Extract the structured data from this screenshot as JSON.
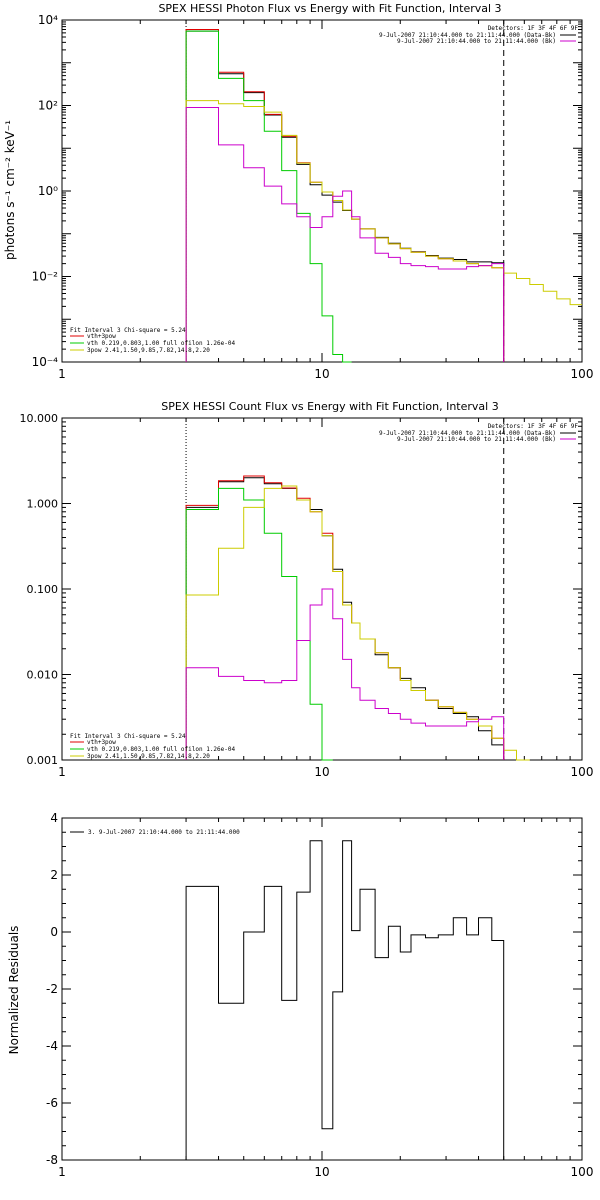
{
  "chart_data": [
    {
      "type": "line",
      "title": "SPEX HESSI Photon Flux vs Energy with Fit Function, Interval 3",
      "xlabel": "",
      "ylabel": "photons s⁻¹ cm⁻² keV⁻¹",
      "xscale": "log",
      "yscale": "log",
      "xlim": [
        1,
        100
      ],
      "ylim": [
        0.0001,
        10000
      ],
      "x_ticks": [
        1,
        10,
        100
      ],
      "x_tick_labels": [
        "1",
        "10",
        "100"
      ],
      "y_ticks": [
        0.0001,
        0.01,
        1,
        100,
        10000
      ],
      "y_tick_labels": [
        "10⁻⁴",
        "10⁻²",
        "10⁰",
        "10²",
        "10⁴"
      ],
      "detectors_label": "Detectors: 1F 3F 4F 6F 9F",
      "right_legend": [
        {
          "label": "9-Jul-2007 21:10:44.000 to 21:11:44.000 (Data-Bk)",
          "color": "#000000"
        },
        {
          "label": "9-Jul-2007 21:10:44.000 to 21:11:44.000 (Bk)",
          "color": "#cc00cc"
        }
      ],
      "fit_label": "Fit Interval 3   Chi-square = 5.24",
      "left_legend": [
        {
          "label": "vth+3pow",
          "color": "#e00000"
        },
        {
          "label": "vth 0.219,0.803,1.00  full ofilon 1.26e-04",
          "color": "#00cc00"
        },
        {
          "label": "3pow 2.41,1.50,9.85,7.82,14.8,2.20",
          "color": "#cccc00"
        }
      ],
      "bin_edges": [
        3.0,
        4.0,
        5.0,
        6.0,
        7.0,
        8.0,
        9.0,
        10.0,
        11.0,
        12.0,
        13.0,
        14.0,
        16.0,
        18.0,
        20.0,
        22.0,
        25.0,
        28.0,
        32.0,
        36.0,
        40.0,
        45.0,
        50.0,
        56.0,
        63.0,
        71.0,
        80.0,
        90.0,
        100.0
      ],
      "series": [
        {
          "name": "Data-Bk",
          "color": "#000000",
          "values": [
            5500,
            550,
            200,
            60,
            18,
            4.2,
            1.4,
            0.8,
            0.55,
            0.35,
            0.22,
            0.13,
            0.082,
            0.06,
            0.046,
            0.038,
            0.031,
            0.027,
            0.025,
            0.022,
            0.022,
            0.021,
            null,
            null,
            null,
            null,
            null,
            null
          ]
        },
        {
          "name": "vth+3pow",
          "color": "#e00000",
          "values": [
            6000,
            600,
            210,
            62,
            19,
            4.6,
            1.6,
            0.95,
            0.6,
            0.36,
            0.22,
            0.13,
            0.08,
            0.058,
            0.045,
            0.037,
            0.03,
            0.026,
            0.023,
            0.02,
            0.018,
            0.016,
            null,
            null,
            null,
            null,
            null,
            null
          ]
        },
        {
          "name": "vth",
          "color": "#00cc00",
          "values": [
            5500,
            430,
            130,
            25,
            3.0,
            0.3,
            0.02,
            0.0012,
            0.00015,
            0.0001,
            null,
            null,
            null,
            null,
            null,
            null,
            null,
            null,
            null,
            null,
            null,
            null,
            null,
            null,
            null,
            null,
            null,
            null
          ]
        },
        {
          "name": "3pow",
          "color": "#cccc00",
          "values": [
            130,
            110,
            95,
            70,
            20,
            4.5,
            1.6,
            0.95,
            0.6,
            0.36,
            0.22,
            0.13,
            0.08,
            0.058,
            0.045,
            0.037,
            0.03,
            0.026,
            0.023,
            0.02,
            0.018,
            0.016,
            0.012,
            0.009,
            0.0065,
            0.0045,
            0.003,
            0.0022
          ]
        },
        {
          "name": "Bk",
          "color": "#cc00cc",
          "values": [
            90,
            12,
            3.5,
            1.3,
            0.5,
            0.25,
            0.14,
            0.25,
            0.75,
            1.0,
            0.25,
            0.08,
            0.035,
            0.028,
            0.02,
            0.018,
            0.017,
            0.015,
            0.015,
            0.017,
            0.018,
            0.02,
            null,
            null,
            null,
            null,
            null,
            null
          ]
        }
      ]
    },
    {
      "type": "line",
      "title": "SPEX HESSI Count Flux vs Energy with Fit Function, Interval 3",
      "xlabel": "",
      "ylabel": "",
      "xscale": "log",
      "yscale": "log",
      "xlim": [
        1,
        100
      ],
      "ylim": [
        0.001,
        10
      ],
      "x_ticks": [
        1,
        10,
        100
      ],
      "x_tick_labels": [
        "1",
        "10",
        "100"
      ],
      "y_ticks": [
        0.001,
        0.01,
        0.1,
        1,
        10
      ],
      "y_tick_labels": [
        "0.001",
        "0.010",
        "0.100",
        "1.000",
        "10.000"
      ],
      "detectors_label": "Detectors: 1F 3F 4F 6F 9F",
      "right_legend": [
        {
          "label": "9-Jul-2007 21:10:44.000 to 21:11:44.000 (Data-Bk)",
          "color": "#000000"
        },
        {
          "label": "9-Jul-2007 21:10:44.000 to 21:11:44.000 (Bk)",
          "color": "#cc00cc"
        }
      ],
      "fit_label": "Fit Interval 3   Chi-square = 5.24",
      "left_legend": [
        {
          "label": "vth+3pow",
          "color": "#e00000"
        },
        {
          "label": "vth 0.219,0.803,1.00  full ofilon 1.26e-04",
          "color": "#00cc00"
        },
        {
          "label": "3pow 2.41,1.50,9.85,7.82,14.8,2.20",
          "color": "#cccc00"
        }
      ],
      "bin_edges": [
        3.0,
        4.0,
        5.0,
        6.0,
        7.0,
        8.0,
        9.0,
        10.0,
        11.0,
        12.0,
        13.0,
        14.0,
        16.0,
        18.0,
        20.0,
        22.0,
        25.0,
        28.0,
        32.0,
        36.0,
        40.0,
        45.0,
        50.0,
        56.0,
        63.0,
        71.0,
        80.0,
        90.0,
        100.0
      ],
      "series": [
        {
          "name": "Data-Bk",
          "color": "#000000",
          "values": [
            0.9,
            1.8,
            2.0,
            1.7,
            1.5,
            1.1,
            0.85,
            0.42,
            0.17,
            0.07,
            0.04,
            0.026,
            0.017,
            0.012,
            0.009,
            0.007,
            0.005,
            0.004,
            0.0035,
            0.0032,
            0.0022,
            0.0015,
            null,
            null,
            null,
            null,
            null,
            null
          ]
        },
        {
          "name": "vth+3pow",
          "color": "#e00000",
          "values": [
            0.95,
            1.85,
            2.1,
            1.75,
            1.52,
            1.15,
            0.8,
            0.45,
            0.16,
            0.065,
            0.04,
            0.026,
            0.018,
            0.012,
            0.0085,
            0.0065,
            0.005,
            0.0042,
            0.0036,
            0.003,
            0.0025,
            0.0018,
            null,
            null,
            null,
            null,
            null,
            null
          ]
        },
        {
          "name": "vth",
          "color": "#00cc00",
          "values": [
            0.85,
            1.5,
            1.1,
            0.45,
            0.14,
            0.025,
            0.0045,
            0.001,
            null,
            null,
            null,
            null,
            null,
            null,
            null,
            null,
            null,
            null,
            null,
            null,
            null,
            null,
            null,
            null,
            null,
            null,
            null,
            null
          ]
        },
        {
          "name": "3pow",
          "color": "#cccc00",
          "values": [
            0.085,
            0.3,
            0.9,
            1.5,
            1.6,
            1.1,
            0.8,
            0.42,
            0.16,
            0.065,
            0.04,
            0.026,
            0.018,
            0.012,
            0.0085,
            0.0065,
            0.005,
            0.0042,
            0.0036,
            0.003,
            0.0025,
            0.0018,
            0.0013,
            0.001,
            null,
            null,
            null,
            null
          ]
        },
        {
          "name": "Bk",
          "color": "#cc00cc",
          "values": [
            0.012,
            0.0095,
            0.0085,
            0.008,
            0.0085,
            0.025,
            0.065,
            0.1,
            0.045,
            0.015,
            0.007,
            0.005,
            0.004,
            0.0035,
            0.003,
            0.0027,
            0.0025,
            0.0025,
            0.0025,
            0.0028,
            0.003,
            0.0032,
            null,
            null,
            null,
            null,
            null,
            null
          ]
        }
      ]
    },
    {
      "type": "line",
      "title": "",
      "xlabel": "",
      "ylabel": "Normalized Residuals",
      "xscale": "log",
      "yscale": "linear",
      "xlim": [
        1,
        100
      ],
      "ylim": [
        -8,
        4
      ],
      "x_ticks": [
        1,
        10,
        100
      ],
      "x_tick_labels": [
        "1",
        "10",
        "100"
      ],
      "y_ticks": [
        -8,
        -6,
        -4,
        -2,
        0,
        2,
        4
      ],
      "y_tick_labels": [
        "-8",
        "-6",
        "-4",
        "-2",
        "0",
        "2",
        "4"
      ],
      "legend": [
        {
          "label": "3.  9-Jul-2007 21:10:44.000 to 21:11:44.000",
          "color": "#000000"
        }
      ],
      "bin_edges": [
        3.0,
        4.0,
        5.0,
        6.0,
        7.0,
        8.0,
        9.0,
        10.0,
        11.0,
        12.0,
        13.0,
        14.0,
        16.0,
        18.0,
        20.0,
        22.0,
        25.0,
        28.0,
        32.0,
        36.0,
        40.0,
        45.0,
        50.0
      ],
      "series": [
        {
          "name": "3.  9-Jul-2007 21:10:44.000 to 21:11:44.000",
          "color": "#000000",
          "values": [
            1.6,
            -2.5,
            0.0,
            1.6,
            -2.4,
            1.4,
            3.2,
            -6.9,
            -2.1,
            3.2,
            0.05,
            1.5,
            -0.9,
            0.2,
            -0.7,
            -0.1,
            -0.2,
            -0.1,
            0.5,
            -0.1,
            0.5,
            -0.3
          ]
        }
      ]
    }
  ]
}
